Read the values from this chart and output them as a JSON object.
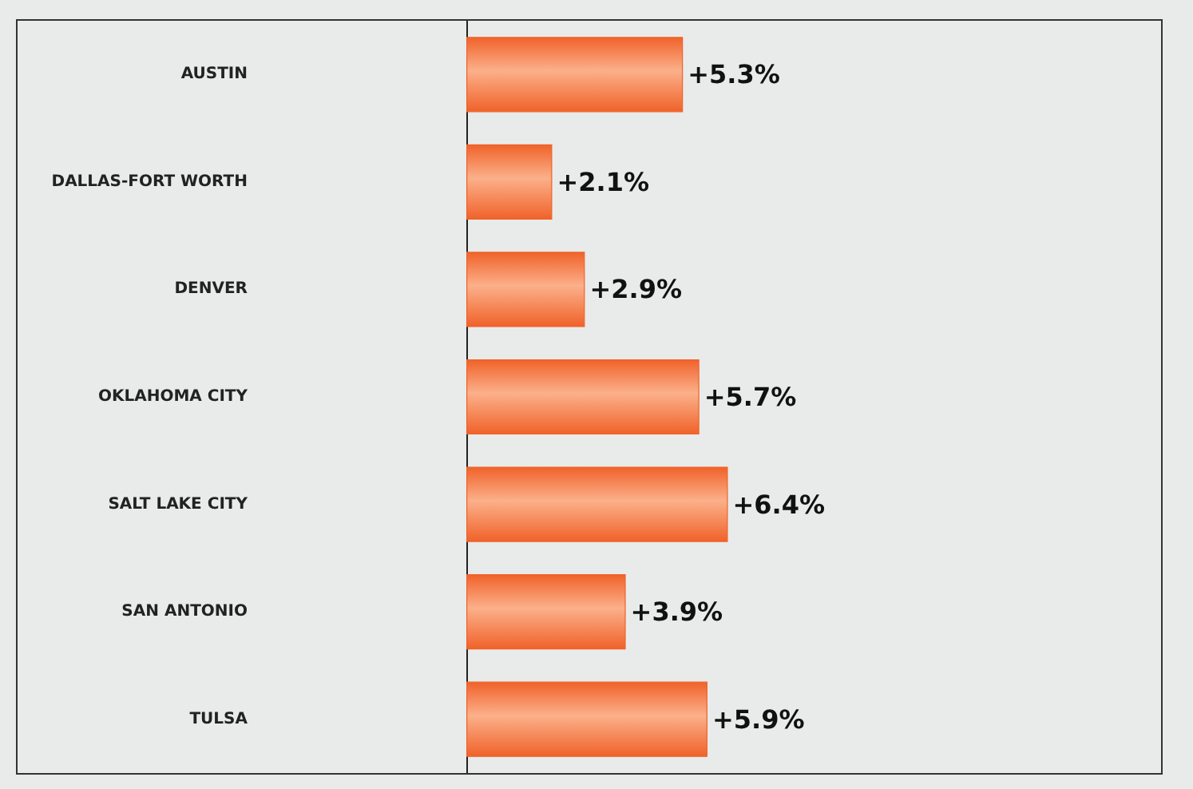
{
  "chart_data": {
    "type": "bar",
    "orientation": "horizontal",
    "categories": [
      "AUSTIN",
      "DALLAS-FORT WORTH",
      "DENVER",
      "OKLAHOMA CITY",
      "SALT LAKE CITY",
      "SAN ANTONIO",
      "TULSA"
    ],
    "values": [
      5.3,
      2.1,
      2.9,
      5.7,
      6.4,
      3.9,
      5.9
    ],
    "value_labels": [
      "+5.3%",
      "+2.1%",
      "+2.9%",
      "+5.7%",
      "+6.4%",
      "+3.9%",
      "+5.9%"
    ],
    "color": "#f0622a",
    "xlim": [
      0,
      17
    ],
    "tick_labels": "y",
    "grid": false
  }
}
